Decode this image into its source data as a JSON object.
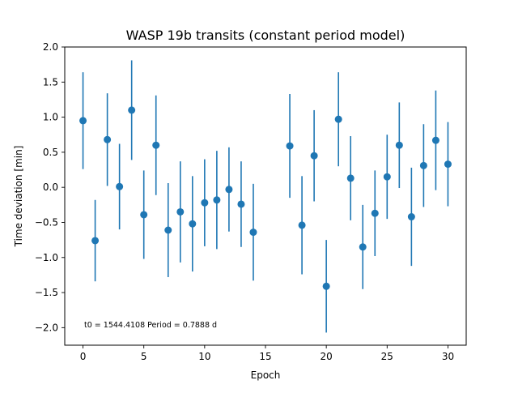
{
  "chart_data": {
    "type": "scatter",
    "title": "WASP 19b transits (constant period model)",
    "xlabel": "Epoch",
    "ylabel": "Time deviation [min]",
    "xlim": [
      -1.5,
      31.5
    ],
    "ylim": [
      -2.25,
      2.0
    ],
    "xticks": [
      0,
      5,
      10,
      15,
      20,
      25,
      30
    ],
    "yticks": [
      -2.0,
      -1.5,
      -1.0,
      -0.5,
      0.0,
      0.5,
      1.0,
      1.5,
      2.0
    ],
    "ytick_labels": [
      "−2.0",
      "−1.5",
      "−1.0",
      "−0.5",
      "0.0",
      "0.5",
      "1.0",
      "1.5",
      "2.0"
    ],
    "grid": false,
    "color": "#1f77b4",
    "annotation": "t0 = 1544.4108 Period = 0.7888 d",
    "points": [
      {
        "x": 0,
        "y": 0.95,
        "err": 0.69
      },
      {
        "x": 1,
        "y": -0.76,
        "err": 0.58
      },
      {
        "x": 2,
        "y": 0.68,
        "err": 0.66
      },
      {
        "x": 3,
        "y": 0.01,
        "err": 0.61
      },
      {
        "x": 4,
        "y": 1.1,
        "err": 0.71
      },
      {
        "x": 5,
        "y": -0.39,
        "err": 0.63
      },
      {
        "x": 6,
        "y": 0.6,
        "err": 0.71
      },
      {
        "x": 7,
        "y": -0.61,
        "err": 0.67
      },
      {
        "x": 8,
        "y": -0.35,
        "err": 0.72
      },
      {
        "x": 9,
        "y": -0.52,
        "err": 0.68
      },
      {
        "x": 10,
        "y": -0.22,
        "err": 0.62
      },
      {
        "x": 11,
        "y": -0.18,
        "err": 0.7
      },
      {
        "x": 12,
        "y": -0.03,
        "err": 0.6
      },
      {
        "x": 13,
        "y": -0.24,
        "err": 0.61
      },
      {
        "x": 14,
        "y": -0.64,
        "err": 0.69
      },
      {
        "x": 17,
        "y": 0.59,
        "err": 0.74
      },
      {
        "x": 18,
        "y": -0.54,
        "err": 0.7
      },
      {
        "x": 19,
        "y": 0.45,
        "err": 0.65
      },
      {
        "x": 20,
        "y": -1.41,
        "err": 0.66
      },
      {
        "x": 21,
        "y": 0.97,
        "err": 0.67
      },
      {
        "x": 22,
        "y": 0.13,
        "err": 0.6
      },
      {
        "x": 23,
        "y": -0.85,
        "err": 0.6
      },
      {
        "x": 24,
        "y": -0.37,
        "err": 0.61
      },
      {
        "x": 25,
        "y": 0.15,
        "err": 0.6
      },
      {
        "x": 26,
        "y": 0.6,
        "err": 0.61
      },
      {
        "x": 27,
        "y": -0.42,
        "err": 0.7
      },
      {
        "x": 28,
        "y": 0.31,
        "err": 0.59
      },
      {
        "x": 29,
        "y": 0.67,
        "err": 0.71
      },
      {
        "x": 30,
        "y": 0.33,
        "err": 0.6
      }
    ]
  }
}
